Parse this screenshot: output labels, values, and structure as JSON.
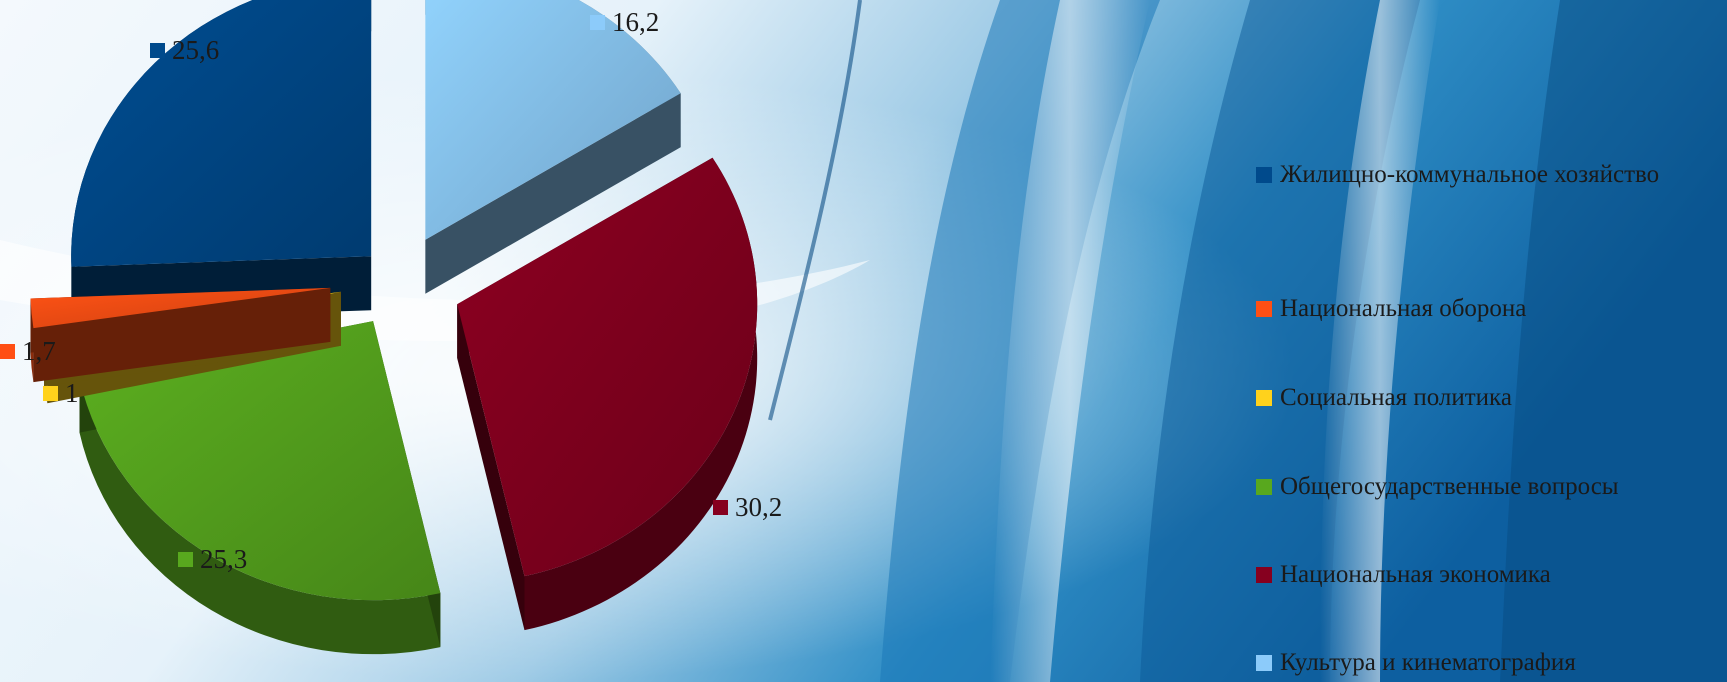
{
  "chart_data": {
    "type": "pie",
    "title": "",
    "slices": [
      {
        "label": "Жилищно-коммунальное хозяйство",
        "value": 25.6,
        "value_label": "25,6",
        "color": "#004A8C"
      },
      {
        "label": "Национальная оборона",
        "value": 1.7,
        "value_label": "1,7",
        "color": "#FF4F14"
      },
      {
        "label": "Социальная политика",
        "value": 1,
        "value_label": "1",
        "color": "#FFD21C"
      },
      {
        "label": "Общегосударственные вопросы",
        "value": 25.3,
        "value_label": "25,3",
        "color": "#58A81E"
      },
      {
        "label": "Национальная экономика",
        "value": 30.2,
        "value_label": "30,2",
        "color": "#86001F"
      },
      {
        "label": "Культура и кинематография",
        "value": 16.2,
        "value_label": "16,2",
        "color": "#8CCBFA"
      }
    ],
    "legend": {
      "position": "right",
      "items": [
        {
          "text": "Жилищно-коммунальное хозяйство",
          "color": "#004A8C"
        },
        {
          "text": "Национальная оборона",
          "color": "#FF4F14"
        },
        {
          "text": "Социальная политика",
          "color": "#FFD21C"
        },
        {
          "text": "Общегосударственные вопросы",
          "color": "#58A81E"
        },
        {
          "text": "Национальная экономика",
          "color": "#86001F"
        },
        {
          "text": "Культура и кинематография",
          "color": "#8CCBFA"
        }
      ]
    }
  }
}
